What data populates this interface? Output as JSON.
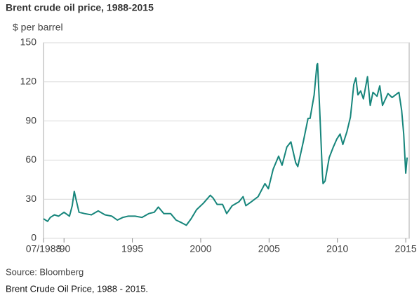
{
  "chart_data": {
    "type": "line",
    "title": "Brent crude oil price, 1988-2015",
    "y_label": "$ per barrel",
    "source": "Source: Bloomberg",
    "caption": "Brent Crude Oil Price, 1988 - 2015.",
    "color": "#16857b",
    "grid": true,
    "xlim": [
      1988.5,
      2015.25
    ],
    "xticks": [
      {
        "value": 1988.5,
        "label": "07/1988"
      },
      {
        "value": 1990,
        "label": "'90"
      },
      1995,
      2000,
      2005,
      2010,
      2015
    ],
    "ylim": [
      0,
      150
    ],
    "yticks": [
      0,
      30,
      60,
      90,
      120,
      150
    ],
    "x": [
      1988.5,
      1988.8,
      1989.0,
      1989.3,
      1989.6,
      1990.0,
      1990.4,
      1990.6,
      1990.75,
      1990.9,
      1991.1,
      1991.5,
      1992.0,
      1992.5,
      1993.0,
      1993.5,
      1993.9,
      1994.3,
      1994.7,
      1995.2,
      1995.7,
      1996.2,
      1996.6,
      1996.9,
      1997.3,
      1997.8,
      1998.2,
      1998.6,
      1998.95,
      1999.3,
      1999.7,
      2000.2,
      2000.7,
      2000.9,
      2001.2,
      2001.6,
      2001.9,
      2002.3,
      2002.8,
      2003.1,
      2003.3,
      2003.7,
      2004.2,
      2004.7,
      2004.95,
      2005.3,
      2005.7,
      2005.95,
      2006.3,
      2006.6,
      2006.95,
      2007.1,
      2007.5,
      2007.85,
      2008.0,
      2008.3,
      2008.5,
      2008.55,
      2008.7,
      2008.9,
      2008.95,
      2009.1,
      2009.4,
      2009.7,
      2009.95,
      2010.2,
      2010.4,
      2010.7,
      2010.95,
      2011.2,
      2011.35,
      2011.5,
      2011.7,
      2011.9,
      2012.2,
      2012.4,
      2012.6,
      2012.9,
      2013.1,
      2013.3,
      2013.7,
      2014.0,
      2014.5,
      2014.7,
      2014.85,
      2015.0,
      2015.1
    ],
    "values": [
      15,
      13,
      16,
      18,
      17,
      20,
      17,
      25,
      36,
      29,
      20,
      19,
      18,
      21,
      18,
      17,
      14,
      16,
      17,
      17,
      16,
      19,
      20,
      24,
      19,
      19,
      14,
      12,
      10,
      15,
      22,
      27,
      33,
      31,
      26,
      26,
      19,
      25,
      28,
      32,
      25,
      28,
      32,
      42,
      38,
      53,
      63,
      56,
      70,
      74,
      58,
      55,
      74,
      92,
      92,
      110,
      133,
      134,
      100,
      50,
      42,
      44,
      62,
      70,
      76,
      80,
      72,
      82,
      93,
      118,
      123,
      110,
      113,
      107,
      124,
      102,
      112,
      109,
      117,
      102,
      111,
      108,
      112,
      98,
      80,
      50,
      62
    ]
  }
}
